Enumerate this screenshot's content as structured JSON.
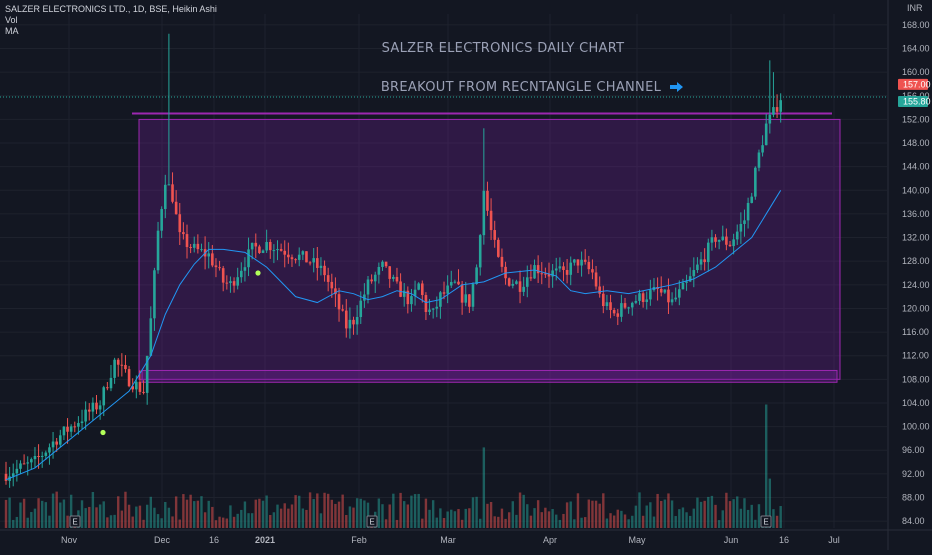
{
  "legend": {
    "symbol_line": "SALZER ELECTRONICS LTD., 1D, BSE, Heikin Ashi",
    "vol_label": "Vol",
    "ma_label": "MA"
  },
  "annotations": {
    "title": "SALZER ELECTRONICS DAILY CHART",
    "breakout": "BREAKOUT FROM  RECNTANGLE CHANNEL"
  },
  "currency": "INR",
  "price_tags": {
    "high": "157.00",
    "last": "155.80"
  },
  "earnings_marker": "E",
  "chart_data": {
    "type": "candlestick",
    "title": "",
    "ylim": [
      83,
      169
    ],
    "y_ticks": [
      84,
      88,
      92,
      96,
      100,
      104,
      108,
      112,
      116,
      120,
      124,
      128,
      132,
      136,
      140,
      144,
      148,
      152,
      156,
      160,
      164,
      168
    ],
    "x_tick_labels": [
      "Nov",
      "Dec",
      "16",
      "2021",
      "Feb",
      "Mar",
      "Apr",
      "May",
      "Jun",
      "16",
      "Jul"
    ],
    "channel": {
      "top": 152,
      "bottom": 108,
      "resistance_line": 153,
      "support_line": 109
    },
    "ma_points": [
      [
        0,
        91
      ],
      [
        8,
        93
      ],
      [
        16,
        97
      ],
      [
        24,
        101
      ],
      [
        30,
        104
      ],
      [
        34,
        106
      ],
      [
        40,
        112
      ],
      [
        44,
        119
      ],
      [
        48,
        124
      ],
      [
        52,
        127.5
      ],
      [
        56,
        130
      ],
      [
        60,
        130
      ],
      [
        66,
        129.5
      ],
      [
        72,
        127
      ],
      [
        76,
        124.5
      ],
      [
        80,
        122
      ],
      [
        86,
        121
      ],
      [
        92,
        123
      ],
      [
        96,
        122.5
      ],
      [
        100,
        121.5
      ],
      [
        104,
        122
      ],
      [
        108,
        123
      ],
      [
        112,
        122.5
      ],
      [
        116,
        121
      ],
      [
        120,
        121.5
      ],
      [
        126,
        124
      ],
      [
        132,
        124.5
      ],
      [
        138,
        126
      ],
      [
        146,
        126.5
      ],
      [
        152,
        125.5
      ],
      [
        156,
        123
      ],
      [
        160,
        122.5
      ],
      [
        166,
        123
      ],
      [
        172,
        122.5
      ],
      [
        176,
        123
      ],
      [
        184,
        124
      ],
      [
        190,
        125
      ],
      [
        196,
        127
      ],
      [
        202,
        130
      ],
      [
        206,
        132
      ],
      [
        210,
        136
      ],
      [
        214,
        140
      ]
    ],
    "candles": [],
    "volumes": []
  }
}
